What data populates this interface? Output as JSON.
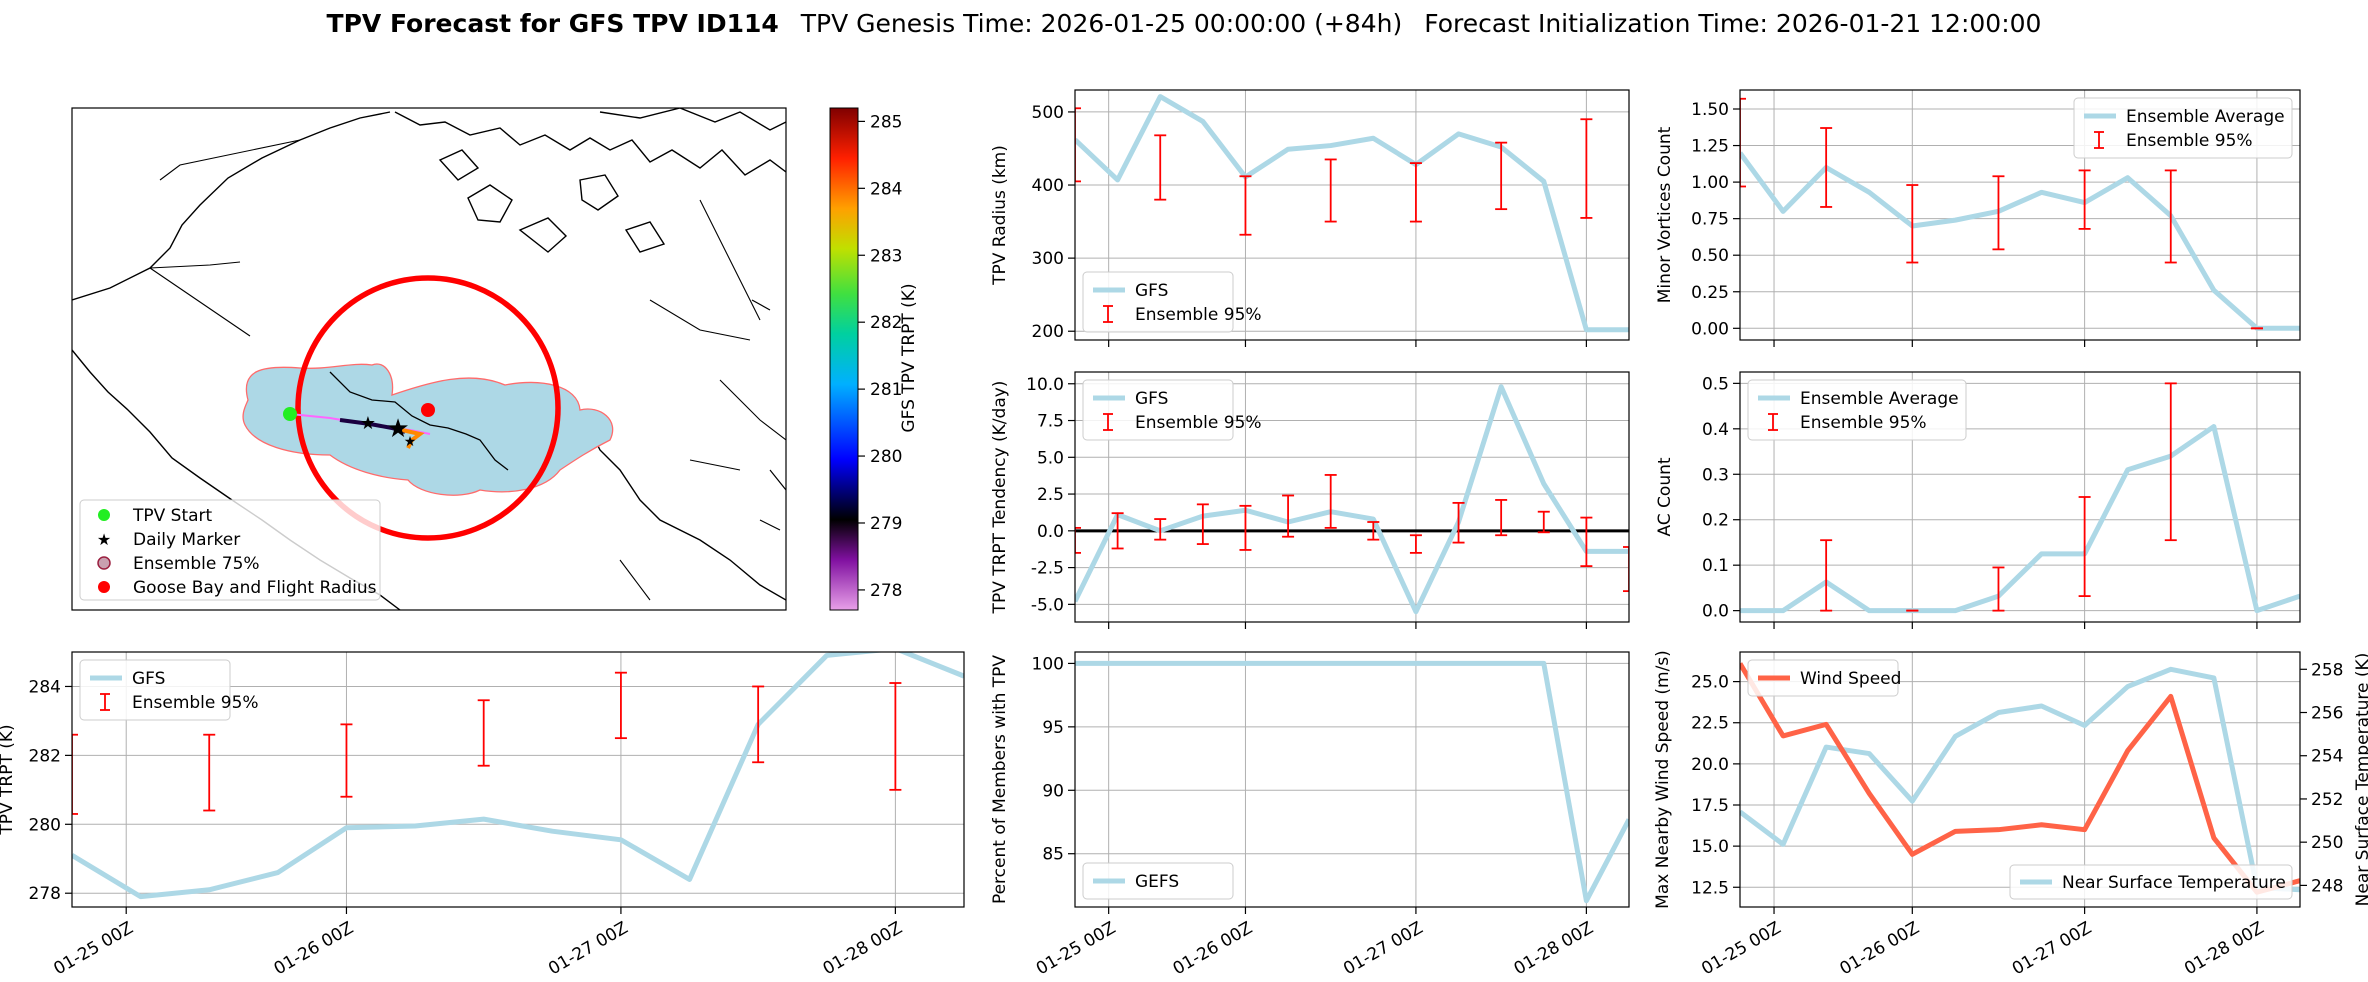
{
  "title": {
    "bold": "TPV Forecast for GFS TPV ID114",
    "genesis": "TPV Genesis Time: 2026-01-25 00:00:00 (+84h)",
    "init": "Forecast Initialization Time: 2026-01-21 12:00:00"
  },
  "colors": {
    "gfs": "#add8e6",
    "ens": "#ff0000",
    "wind": "#ff6347",
    "temp_axis": "#4169e1"
  },
  "map": {
    "legend": [
      "TPV Start",
      "Daily Marker",
      "Ensemble 75%",
      "Goose Bay and Flight Radius"
    ],
    "colorbar": {
      "label": "GFS TPV TRPT (K)",
      "ticks": [
        "278",
        "279",
        "280",
        "281",
        "282",
        "283",
        "284",
        "285"
      ]
    }
  },
  "x_ticks": [
    "01-25 00Z",
    "01-26 00Z",
    "01-27 00Z",
    "01-28 00Z"
  ],
  "chart_data": [
    {
      "id": "radius",
      "type": "line",
      "ylabel": "TPV Radius (km)",
      "ylim": [
        188,
        530
      ],
      "y_ticks": [
        200,
        300,
        400,
        500
      ],
      "xlim": [
        0,
        13
      ],
      "legend_pos": "bottom-left",
      "legend": [
        "GFS",
        "Ensemble 95%"
      ],
      "series": [
        {
          "name": "GFS",
          "x": [
            0,
            1,
            2,
            3,
            4,
            5,
            6,
            7,
            8,
            9,
            10,
            11,
            12,
            13
          ],
          "y": [
            462,
            407,
            521,
            487,
            411,
            449,
            454,
            464,
            428,
            470,
            452,
            405,
            202,
            202
          ]
        }
      ],
      "errorbars": [
        {
          "x": 0,
          "low": 405,
          "high": 505
        },
        {
          "x": 2,
          "low": 380,
          "high": 468
        },
        {
          "x": 4,
          "low": 332,
          "high": 412
        },
        {
          "x": 6,
          "low": 350,
          "high": 435
        },
        {
          "x": 8,
          "low": 350,
          "high": 430
        },
        {
          "x": 10,
          "low": 367,
          "high": 458
        },
        {
          "x": 12,
          "low": 355,
          "high": 490
        }
      ]
    },
    {
      "id": "minor",
      "type": "line",
      "ylabel": "Minor Vortices Count",
      "ylim": [
        -0.08,
        1.63
      ],
      "y_ticks": [
        0.0,
        0.25,
        0.5,
        0.75,
        1.0,
        1.25,
        1.5
      ],
      "tick_decimals": 2,
      "xlim": [
        0,
        13
      ],
      "legend_pos": "top-right",
      "legend": [
        "Ensemble Average",
        "Ensemble 95%"
      ],
      "series": [
        {
          "name": "Ensemble Average",
          "x": [
            0,
            1,
            2,
            3,
            4,
            5,
            6,
            7,
            8,
            9,
            10,
            11,
            12,
            13
          ],
          "y": [
            1.2,
            0.8,
            1.1,
            0.93,
            0.7,
            0.74,
            0.8,
            0.93,
            0.86,
            1.03,
            0.77,
            0.26,
            0.0,
            0.0
          ]
        }
      ],
      "errorbars": [
        {
          "x": 0,
          "low": 0.97,
          "high": 1.57
        },
        {
          "x": 2,
          "low": 0.83,
          "high": 1.37
        },
        {
          "x": 4,
          "low": 0.45,
          "high": 0.98
        },
        {
          "x": 6,
          "low": 0.54,
          "high": 1.04
        },
        {
          "x": 8,
          "low": 0.68,
          "high": 1.08
        },
        {
          "x": 10,
          "low": 0.45,
          "high": 1.08
        },
        {
          "x": 12,
          "low": 0.0,
          "high": 0.0
        }
      ]
    },
    {
      "id": "tendency",
      "type": "line",
      "ylabel": "TPV TRPT Tendency (K/day)",
      "ylim": [
        -6.2,
        10.8
      ],
      "y_ticks": [
        -5.0,
        -2.5,
        0.0,
        2.5,
        5.0,
        7.5,
        10.0
      ],
      "tick_decimals": 1,
      "xlim": [
        0,
        13
      ],
      "legend_pos": "top-left",
      "legend": [
        "GFS",
        "Ensemble 95%"
      ],
      "zero_line": true,
      "series": [
        {
          "name": "GFS",
          "x": [
            0,
            1,
            2,
            3,
            4,
            5,
            6,
            7,
            8,
            9,
            10,
            11,
            12,
            13
          ],
          "y": [
            -4.8,
            1.1,
            0.0,
            1.0,
            1.4,
            0.6,
            1.3,
            0.8,
            -5.5,
            0.6,
            9.8,
            3.2,
            -1.4,
            -1.4
          ]
        }
      ],
      "errorbars": [
        {
          "x": 0,
          "low": -1.5,
          "high": 0.2
        },
        {
          "x": 1,
          "low": -1.2,
          "high": 1.2
        },
        {
          "x": 2,
          "low": -0.6,
          "high": 0.8
        },
        {
          "x": 3,
          "low": -0.9,
          "high": 1.8
        },
        {
          "x": 4,
          "low": -1.3,
          "high": 1.7
        },
        {
          "x": 5,
          "low": -0.4,
          "high": 2.4
        },
        {
          "x": 6,
          "low": 0.2,
          "high": 3.8
        },
        {
          "x": 7,
          "low": -0.6,
          "high": 0.6
        },
        {
          "x": 8,
          "low": -1.5,
          "high": -0.3
        },
        {
          "x": 9,
          "low": -0.8,
          "high": 1.9
        },
        {
          "x": 10,
          "low": -0.3,
          "high": 2.1
        },
        {
          "x": 11,
          "low": -0.1,
          "high": 1.3
        },
        {
          "x": 12,
          "low": -2.4,
          "high": 0.9
        },
        {
          "x": 13,
          "low": -4.1,
          "high": -1.1
        }
      ]
    },
    {
      "id": "ac",
      "type": "line",
      "ylabel": "AC Count",
      "ylim": [
        -0.025,
        0.525
      ],
      "y_ticks": [
        0.0,
        0.1,
        0.2,
        0.3,
        0.4,
        0.5
      ],
      "tick_decimals": 1,
      "xlim": [
        0,
        13
      ],
      "legend_pos": "top-left",
      "legend": [
        "Ensemble Average",
        "Ensemble 95%"
      ],
      "series": [
        {
          "name": "Ensemble Average",
          "x": [
            0,
            1,
            2,
            3,
            4,
            5,
            6,
            7,
            8,
            9,
            10,
            11,
            12,
            13
          ],
          "y": [
            0.0,
            0.0,
            0.063,
            0.0,
            0.0,
            0.0,
            0.032,
            0.125,
            0.125,
            0.31,
            0.34,
            0.405,
            0.0,
            0.032
          ]
        }
      ],
      "errorbars": [
        {
          "x": 2,
          "low": 0.0,
          "high": 0.155
        },
        {
          "x": 4,
          "low": 0.0,
          "high": 0.0
        },
        {
          "x": 6,
          "low": 0.0,
          "high": 0.095
        },
        {
          "x": 8,
          "low": 0.032,
          "high": 0.25
        },
        {
          "x": 10,
          "low": 0.155,
          "high": 0.5
        }
      ]
    },
    {
      "id": "trpt",
      "type": "line",
      "ylabel": "TPV TRPT (K)",
      "ylim": [
        277.6,
        285.0
      ],
      "y_ticks": [
        278,
        280,
        282,
        284
      ],
      "xlim": [
        0,
        13
      ],
      "legend_pos": "top-left",
      "legend": [
        "GFS",
        "Ensemble 95%"
      ],
      "series": [
        {
          "name": "GFS",
          "x": [
            0,
            1,
            2,
            3,
            4,
            5,
            6,
            7,
            8,
            9,
            10,
            11,
            12,
            13
          ],
          "y": [
            279.1,
            277.9,
            278.1,
            278.6,
            279.9,
            279.95,
            280.15,
            279.8,
            279.55,
            278.4,
            282.9,
            284.9,
            285.1,
            284.3
          ]
        }
      ],
      "errorbars": [
        {
          "x": 0,
          "low": 280.3,
          "high": 282.6
        },
        {
          "x": 2,
          "low": 280.4,
          "high": 282.6
        },
        {
          "x": 4,
          "low": 280.8,
          "high": 282.9
        },
        {
          "x": 6,
          "low": 281.7,
          "high": 283.6
        },
        {
          "x": 8,
          "low": 282.5,
          "high": 284.4
        },
        {
          "x": 10,
          "low": 281.8,
          "high": 284.0
        },
        {
          "x": 12,
          "low": 281.0,
          "high": 284.1
        }
      ]
    },
    {
      "id": "percent",
      "type": "line",
      "ylabel": "Percent of Members with TPV",
      "ylim": [
        80.8,
        100.9
      ],
      "y_ticks": [
        85,
        90,
        95,
        100
      ],
      "xlim": [
        0,
        13
      ],
      "legend_pos": "bottom-left",
      "legend": [
        "GEFS"
      ],
      "series": [
        {
          "name": "GEFS",
          "x": [
            0,
            1,
            2,
            3,
            4,
            5,
            6,
            7,
            8,
            9,
            10,
            11,
            12,
            13
          ],
          "y": [
            100,
            100,
            100,
            100,
            100,
            100,
            100,
            100,
            100,
            100,
            100,
            100,
            81.3,
            87.7
          ]
        }
      ]
    },
    {
      "id": "wind",
      "type": "line",
      "ylabel": "Max Nearby Wind Speed (m/s)",
      "ylim": [
        11.3,
        26.8
      ],
      "y_ticks": [
        12.5,
        15.0,
        17.5,
        20.0,
        22.5,
        25.0
      ],
      "tick_decimals": 1,
      "xlim": [
        0,
        13
      ],
      "legend_pos": "top-left",
      "legend": [
        "Wind Speed"
      ],
      "series": [
        {
          "name": "Wind Speed",
          "x": [
            0,
            1,
            2,
            3,
            4,
            5,
            6,
            7,
            8,
            9,
            10,
            11,
            12,
            13
          ],
          "y": [
            26.1,
            21.7,
            22.4,
            18.2,
            14.5,
            15.9,
            16.0,
            16.3,
            16.0,
            20.8,
            24.1,
            15.5,
            12.2,
            12.9
          ]
        }
      ],
      "y2": {
        "ylabel": "Near Surface Temperature (K)",
        "ylim": [
          247.0,
          258.8
        ],
        "y_ticks": [
          248,
          250,
          252,
          254,
          256,
          258
        ],
        "legend": [
          "Near Surface Temperature"
        ],
        "series": [
          {
            "name": "Near Surface Temperature",
            "x": [
              0,
              1,
              2,
              3,
              4,
              5,
              6,
              7,
              8,
              9,
              10,
              11,
              12,
              13
            ],
            "y": [
              251.4,
              249.9,
              254.4,
              254.1,
              251.9,
              254.9,
              256.0,
              256.3,
              255.4,
              257.2,
              258.0,
              257.6,
              247.9,
              247.8
            ]
          }
        ]
      }
    }
  ]
}
